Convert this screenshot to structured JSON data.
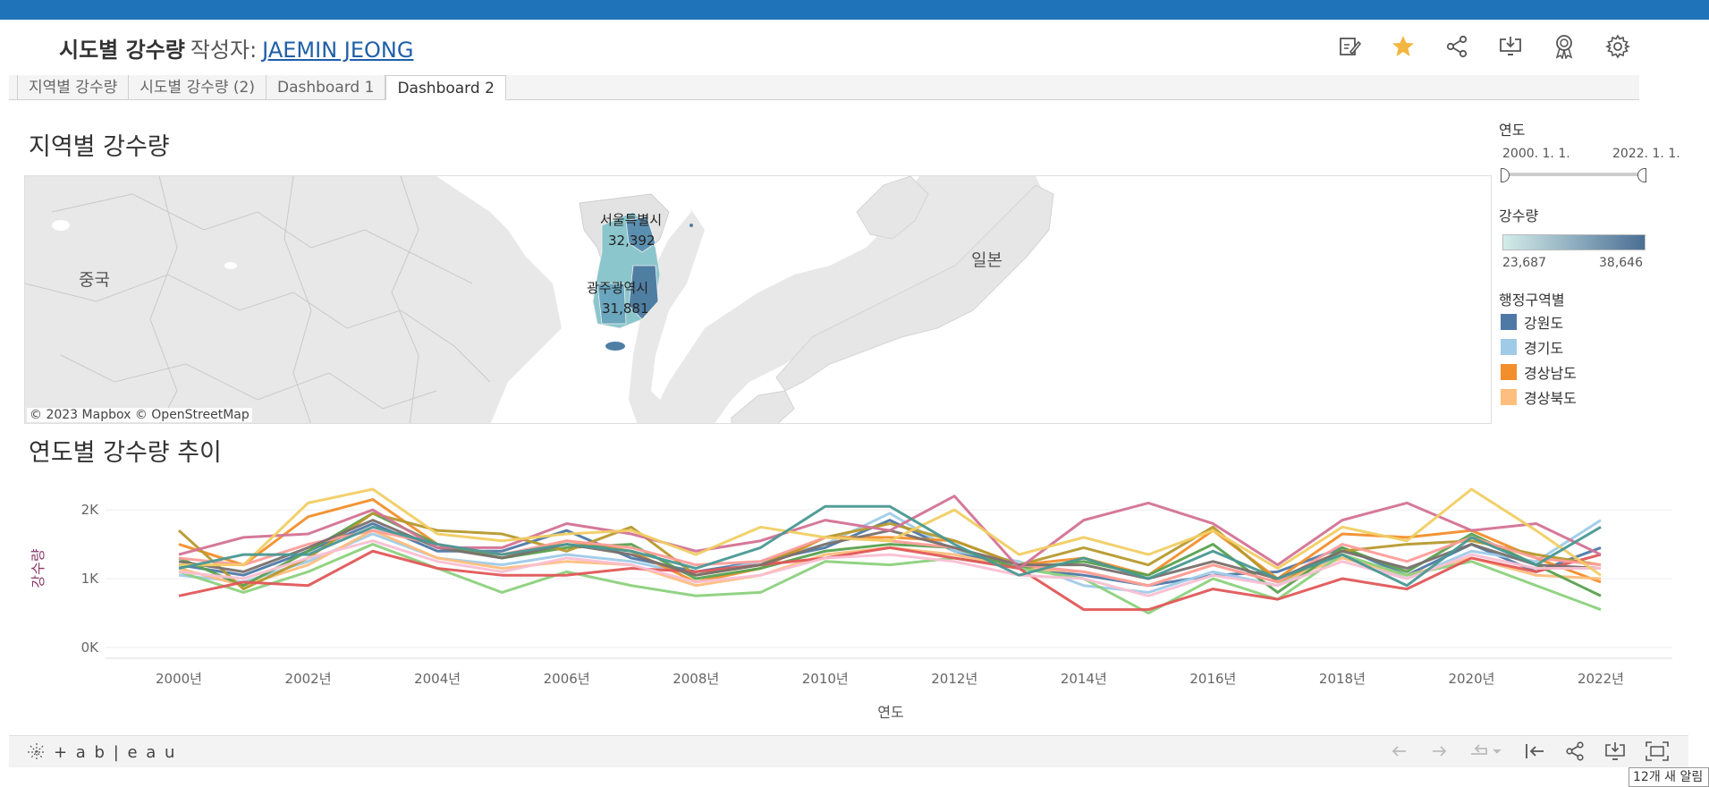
{
  "banner": {
    "text": ""
  },
  "header": {
    "title": "시도별 강수량",
    "author_label": "작성자:",
    "author_name": "JAEMIN JEONG",
    "icons": [
      "edit-icon",
      "star-icon",
      "share-icon",
      "download-icon",
      "badge-icon",
      "settings-icon"
    ]
  },
  "tabs": [
    {
      "label": "지역별 강수량",
      "active": false
    },
    {
      "label": "시도별 강수량 (2)",
      "active": false
    },
    {
      "label": "Dashboard 1",
      "active": false
    },
    {
      "label": "Dashboard 2",
      "active": true
    }
  ],
  "map_section": {
    "title": "지역별 강수량",
    "labels": {
      "china": "중국",
      "japan": "일본",
      "seoul_name": "서울특별시",
      "seoul_value": "32,392",
      "gwangju_name": "광주광역시",
      "gwangju_value": "31,881"
    },
    "credit": "© 2023 Mapbox  © OpenStreetMap"
  },
  "filters": {
    "year_title": "연도",
    "year_start": "2000. 1. 1.",
    "year_end": "2022. 1. 1.",
    "rain_title": "강수량",
    "rain_min": "23,687",
    "rain_max": "38,646",
    "rain_color_low": "#d3ece9",
    "rain_color_high": "#4a6f94",
    "region_title": "행정구역별",
    "regions": [
      {
        "label": "강원도",
        "color": "#4e79a7"
      },
      {
        "label": "경기도",
        "color": "#a0cbe8"
      },
      {
        "label": "경상남도",
        "color": "#f28e2b"
      },
      {
        "label": "경상북도",
        "color": "#ffbe7d"
      }
    ]
  },
  "trend_section": {
    "title": "연도별 강수량 추이"
  },
  "chart_data": {
    "type": "line",
    "xlabel": "연도",
    "ylabel": "강수량",
    "x": [
      2000,
      2001,
      2002,
      2003,
      2004,
      2005,
      2006,
      2007,
      2008,
      2009,
      2010,
      2011,
      2012,
      2013,
      2014,
      2015,
      2016,
      2017,
      2018,
      2019,
      2020,
      2021,
      2022
    ],
    "x_ticks": [
      "2000년",
      "2002년",
      "2004년",
      "2006년",
      "2008년",
      "2010년",
      "2012년",
      "2014년",
      "2016년",
      "2018년",
      "2020년",
      "2022년"
    ],
    "y_ticks": [
      "0K",
      "1K",
      "2K"
    ],
    "ylim": [
      0,
      2300
    ],
    "grid": true,
    "series": [
      {
        "color": "#4e79a7",
        "values": [
          1200,
          1050,
          1400,
          1800,
          1400,
          1400,
          1700,
          1300,
          1100,
          1250,
          1450,
          1850,
          1400,
          1150,
          1050,
          900,
          1050,
          1100,
          1450,
          1050,
          1500,
          1100,
          1450
        ]
      },
      {
        "color": "#a0cbe8",
        "values": [
          1050,
          950,
          1250,
          1650,
          1300,
          1200,
          1350,
          1250,
          1050,
          1250,
          1500,
          1950,
          1400,
          1250,
          900,
          800,
          1100,
          900,
          1350,
          1000,
          1400,
          1250,
          1850
        ]
      },
      {
        "color": "#f28e2b",
        "values": [
          1500,
          1200,
          1900,
          2150,
          1500,
          1300,
          1550,
          1400,
          950,
          1150,
          1600,
          1600,
          1550,
          1200,
          1300,
          1050,
          1700,
          1000,
          1650,
          1600,
          1700,
          1300,
          950
        ]
      },
      {
        "color": "#ffbe7d",
        "values": [
          1150,
          900,
          1200,
          1700,
          1300,
          1150,
          1250,
          1200,
          900,
          1050,
          1350,
          1450,
          1350,
          1150,
          1100,
          900,
          1200,
          950,
          1300,
          1050,
          1300,
          1050,
          1000
        ]
      },
      {
        "color": "#59a14f",
        "values": [
          1300,
          900,
          1400,
          1950,
          1500,
          1300,
          1450,
          1500,
          1000,
          1150,
          1400,
          1500,
          1450,
          1150,
          1250,
          1050,
          1500,
          800,
          1450,
          1100,
          1650,
          1200,
          750
        ]
      },
      {
        "color": "#8cd17d",
        "values": [
          1100,
          800,
          1100,
          1500,
          1150,
          800,
          1100,
          900,
          750,
          800,
          1250,
          1200,
          1300,
          1150,
          1000,
          500,
          1000,
          700,
          1350,
          1050,
          1250,
          900,
          550
        ]
      },
      {
        "color": "#b6992d",
        "values": [
          1700,
          850,
          1300,
          1950,
          1700,
          1650,
          1400,
          1750,
          1050,
          1200,
          1600,
          1800,
          1550,
          1200,
          1450,
          1200,
          1750,
          950,
          1400,
          1500,
          1550,
          1350,
          1200
        ]
      },
      {
        "color": "#e15759",
        "values": [
          750,
          950,
          900,
          1400,
          1150,
          1050,
          1050,
          1150,
          1100,
          1200,
          1300,
          1450,
          1300,
          1150,
          550,
          550,
          850,
          700,
          1000,
          850,
          1300,
          1100,
          1350
        ]
      },
      {
        "color": "#ff9d9a",
        "values": [
          1300,
          1200,
          1500,
          1700,
          1500,
          1350,
          1550,
          1450,
          1200,
          1250,
          1600,
          1550,
          1450,
          1200,
          1100,
          900,
          1200,
          950,
          1500,
          1250,
          1600,
          1300,
          1200
        ]
      },
      {
        "color": "#79706e",
        "values": [
          1250,
          1100,
          1450,
          1850,
          1450,
          1300,
          1500,
          1350,
          1050,
          1200,
          1500,
          1700,
          1450,
          1200,
          1200,
          1000,
          1250,
          1000,
          1400,
          1150,
          1500,
          1200,
          1150
        ]
      },
      {
        "color": "#d37295",
        "values": [
          1350,
          1600,
          1650,
          2000,
          1450,
          1450,
          1800,
          1650,
          1400,
          1550,
          1850,
          1700,
          2200,
          1150,
          1850,
          2100,
          1800,
          1200,
          1850,
          2100,
          1700,
          1800,
          1350
        ]
      },
      {
        "color": "#fabfd2",
        "values": [
          1100,
          1000,
          1300,
          1550,
          1250,
          1100,
          1300,
          1200,
          950,
          1050,
          1300,
          1350,
          1250,
          1050,
          1000,
          750,
          1050,
          900,
          1250,
          1000,
          1350,
          1150,
          1150
        ]
      },
      {
        "color": "#f1ce63",
        "values": [
          1200,
          1200,
          2100,
          2300,
          1650,
          1550,
          1650,
          1700,
          1350,
          1750,
          1600,
          1550,
          2000,
          1350,
          1600,
          1350,
          1700,
          1150,
          1750,
          1550,
          2300,
          1700,
          1050
        ]
      },
      {
        "color": "#499894",
        "values": [
          1150,
          1350,
          1350,
          1750,
          1500,
          1350,
          1500,
          1400,
          1150,
          1450,
          2050,
          2050,
          1500,
          1050,
          1300,
          1000,
          1400,
          1000,
          1350,
          900,
          1600,
          1200,
          1750
        ]
      }
    ]
  },
  "footer": {
    "logo_text": "+ a b | e a u"
  },
  "notification": {
    "text": "12개 새 알림"
  }
}
